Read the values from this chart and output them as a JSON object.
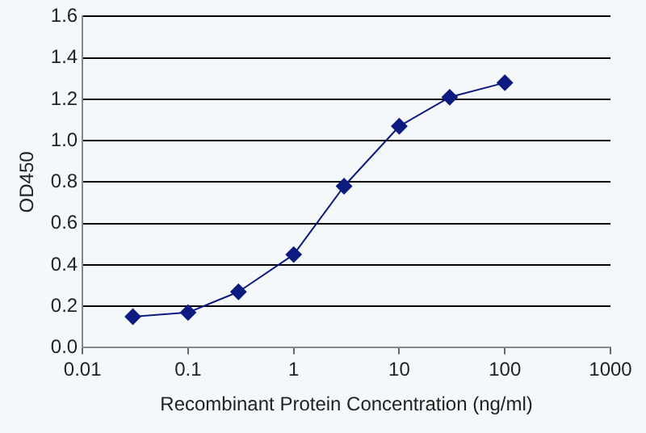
{
  "chart_data": {
    "type": "line",
    "xlabel": "Recombinant Protein Concentration (ng/ml)",
    "ylabel": "OD450",
    "x": [
      0.03,
      0.1,
      0.3,
      1,
      3,
      10,
      30,
      100
    ],
    "series": [
      {
        "color": "#0d1a80",
        "values": [
          0.15,
          0.17,
          0.27,
          0.45,
          0.78,
          1.07,
          1.21,
          1.28
        ]
      }
    ],
    "log": "x",
    "xlim": [
      0.01,
      1000
    ],
    "xticks": [
      0.01,
      0.1,
      1,
      10,
      100,
      1000
    ],
    "ylim": [
      0,
      1.6
    ],
    "yticks": [
      {
        "value": 0,
        "label": "0.0"
      },
      {
        "value": 0.2,
        "label": "0.2"
      },
      {
        "value": 0.4,
        "label": "0.4"
      },
      {
        "value": 0.6,
        "label": "0.6"
      },
      {
        "value": 0.8,
        "label": "0.8"
      },
      {
        "value": 1,
        "label": "1.0"
      },
      {
        "value": 1.2,
        "label": "1.2"
      },
      {
        "value": 1.4,
        "label": "1.4"
      },
      {
        "value": 1.6,
        "label": "1.6"
      }
    ],
    "grid": "y",
    "marker": "diamond",
    "line_style": "solid",
    "legend": false
  }
}
